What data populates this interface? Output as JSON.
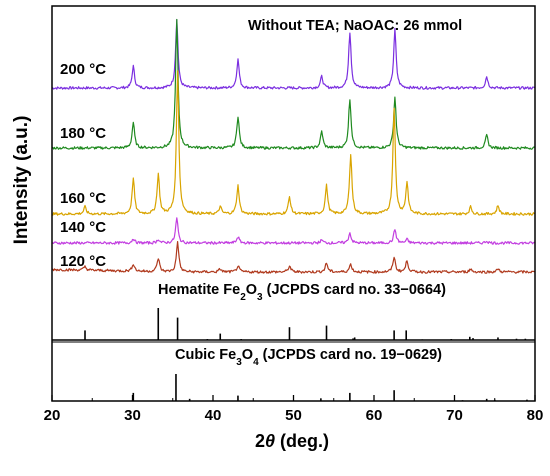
{
  "chart_data": {
    "type": "line",
    "annotation": "Without TEA; NaOAC: 26 mmol",
    "xlabel": "2θ (deg.)",
    "ylabel": "Intensity (a.u.)",
    "xlim": [
      20,
      80
    ],
    "xticks": [
      20,
      30,
      40,
      50,
      60,
      70,
      80
    ],
    "series": [
      {
        "name": "200 °C",
        "color": "#7b2fe0",
        "peaks": [
          [
            30.1,
            0.32
          ],
          [
            35.5,
            1.0
          ],
          [
            43.1,
            0.42
          ],
          [
            53.5,
            0.17
          ],
          [
            57.0,
            0.82
          ],
          [
            62.6,
            0.86
          ],
          [
            74.0,
            0.17
          ]
        ]
      },
      {
        "name": "180 °C",
        "color": "#1f8a1f",
        "peaks": [
          [
            30.1,
            0.2
          ],
          [
            35.5,
            1.0
          ],
          [
            43.1,
            0.25
          ],
          [
            53.5,
            0.13
          ],
          [
            57.0,
            0.38
          ],
          [
            62.6,
            0.4
          ],
          [
            74.0,
            0.1
          ]
        ]
      },
      {
        "name": "160 °C",
        "color": "#d9a400",
        "peaks": [
          [
            24.1,
            0.05
          ],
          [
            30.1,
            0.25
          ],
          [
            33.2,
            0.28
          ],
          [
            35.6,
            1.0
          ],
          [
            40.9,
            0.05
          ],
          [
            43.1,
            0.2
          ],
          [
            49.5,
            0.12
          ],
          [
            54.1,
            0.2
          ],
          [
            57.1,
            0.42
          ],
          [
            62.5,
            0.75
          ],
          [
            64.1,
            0.22
          ],
          [
            72.0,
            0.05
          ],
          [
            75.4,
            0.06
          ]
        ]
      },
      {
        "name": "140 °C",
        "color": "#c23ee0",
        "peaks": [
          [
            30.1,
            0.18
          ],
          [
            33.2,
            0.15
          ],
          [
            35.5,
            1.0
          ],
          [
            43.1,
            0.25
          ],
          [
            53.5,
            0.12
          ],
          [
            57.0,
            0.4
          ],
          [
            62.6,
            0.55
          ],
          [
            64.1,
            0.14
          ],
          [
            74.0,
            0.08
          ]
        ]
      },
      {
        "name": "120 °C",
        "color": "#b03a1e",
        "peaks": [
          [
            24.1,
            0.12
          ],
          [
            30.1,
            0.25
          ],
          [
            33.2,
            0.45
          ],
          [
            35.6,
            1.0
          ],
          [
            40.9,
            0.1
          ],
          [
            43.1,
            0.2
          ],
          [
            49.5,
            0.2
          ],
          [
            54.1,
            0.3
          ],
          [
            57.1,
            0.26
          ],
          [
            62.5,
            0.5
          ],
          [
            64.1,
            0.38
          ],
          [
            72.0,
            0.1
          ],
          [
            75.4,
            0.1
          ]
        ]
      }
    ],
    "references": [
      {
        "name": "Hematite Fe₂O₃ (JCPDS card no. 33−0664)",
        "name_parts": [
          "Hematite Fe",
          "2",
          "O",
          "3",
          " (JCPDS card no. 33−0664)"
        ],
        "sticks": [
          [
            24.1,
            0.3
          ],
          [
            33.2,
            1.0
          ],
          [
            35.6,
            0.7
          ],
          [
            39.3,
            0.03
          ],
          [
            40.9,
            0.2
          ],
          [
            43.5,
            0.03
          ],
          [
            49.5,
            0.4
          ],
          [
            54.1,
            0.45
          ],
          [
            57.4,
            0.05
          ],
          [
            57.6,
            0.08
          ],
          [
            62.5,
            0.3
          ],
          [
            64.0,
            0.3
          ],
          [
            66.0,
            0.02
          ],
          [
            69.6,
            0.03
          ],
          [
            71.9,
            0.1
          ],
          [
            72.3,
            0.06
          ],
          [
            75.4,
            0.08
          ],
          [
            77.7,
            0.04
          ],
          [
            78.8,
            0.04
          ]
        ]
      },
      {
        "name": "Cubic Fe₃O₄ (JCPDS card no. 19−0629)",
        "name_parts": [
          "Cubic Fe",
          "3",
          "O",
          "4",
          " (JCPDS card no. 19−0629)"
        ],
        "sticks": [
          [
            18.3,
            0.1
          ],
          [
            30.1,
            0.3
          ],
          [
            35.4,
            1.0
          ],
          [
            37.1,
            0.08
          ],
          [
            43.1,
            0.2
          ],
          [
            53.4,
            0.1
          ],
          [
            57.0,
            0.3
          ],
          [
            62.5,
            0.4
          ],
          [
            71.0,
            0.03
          ],
          [
            74.0,
            0.08
          ],
          [
            75.0,
            0.05
          ],
          [
            79.0,
            0.05
          ]
        ]
      }
    ]
  }
}
